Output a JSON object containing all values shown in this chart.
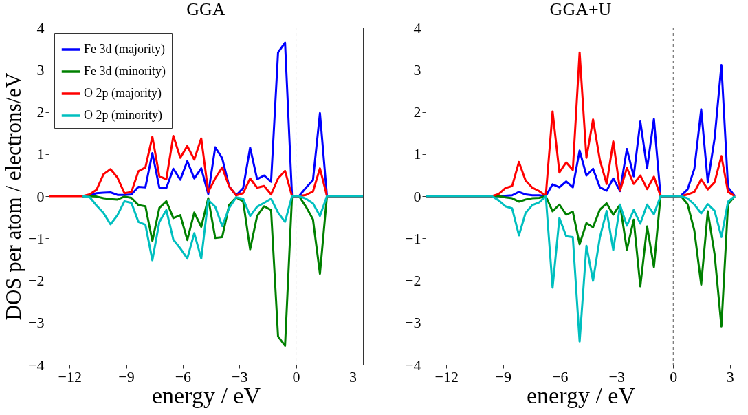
{
  "chart_data": [
    {
      "type": "line",
      "title": "GGA",
      "xlabel": "energy / eV",
      "ylabel": "DOS per atom / electrons/eV",
      "legend": "top left",
      "grid": false,
      "x": [
        -13.1,
        -11.31,
        -10.94,
        -10.57,
        -10.2,
        -9.83,
        -9.46,
        -9.09,
        -8.72,
        -8.35,
        -7.98,
        -7.61,
        -7.24,
        -6.87,
        -6.5,
        -6.13,
        -5.76,
        -5.39,
        -5.02,
        -4.65,
        -4.28,
        -3.91,
        -3.54,
        -3.17,
        -2.8,
        -2.43,
        -2.06,
        -1.69,
        -1.32,
        -0.95,
        -0.58,
        -0.21,
        0.16,
        0.53,
        0.9,
        1.27,
        1.64,
        3.55
      ],
      "xlim": [
        -13.1,
        3.55
      ],
      "xticks": [
        -12,
        -9,
        -6,
        -3,
        0,
        3
      ],
      "ylim": [
        -4,
        4
      ],
      "yticks": [
        -4,
        -3,
        -2,
        -1,
        0,
        1,
        2,
        3,
        4
      ],
      "series": [
        {
          "name": "Fe 3d (majority)",
          "color": "#0000ff",
          "values": [
            null,
            0,
            0.02,
            0.07,
            0.08,
            0.09,
            0.03,
            0.03,
            0.04,
            0.22,
            0.21,
            1.02,
            0.2,
            0.19,
            0.65,
            0.39,
            0.83,
            0.42,
            0.66,
            0.05,
            1.16,
            0.9,
            0.23,
            0.02,
            0.19,
            1.15,
            0.4,
            0.49,
            0.34,
            3.41,
            3.64,
            0,
            0,
            0.2,
            0.38,
            1.97,
            0,
            0
          ]
        },
        {
          "name": "Fe 3d (minority)",
          "color": "#008000",
          "values": [
            null,
            0,
            0,
            -0.01,
            -0.05,
            -0.07,
            -0.08,
            -0.01,
            -0.04,
            -0.21,
            -0.24,
            -1.06,
            -0.28,
            -0.12,
            -0.52,
            -0.45,
            -1.04,
            -0.39,
            -0.73,
            -0.05,
            -0.99,
            -0.97,
            -0.21,
            -0.03,
            -0.12,
            -1.26,
            -0.47,
            -0.24,
            -0.33,
            -3.33,
            -3.55,
            0,
            0,
            -0.25,
            -0.55,
            -1.84,
            0,
            0
          ]
        },
        {
          "name": "O 2p (majority)",
          "color": "#ff0000",
          "values": [
            0,
            0,
            0.04,
            0.15,
            0.52,
            0.64,
            0.44,
            0.07,
            0.1,
            0.59,
            0.68,
            1.41,
            0.47,
            0.4,
            1.43,
            0.91,
            1.19,
            0.87,
            1.37,
            0.1,
            0.42,
            0.68,
            0.23,
            0.02,
            0.07,
            0.42,
            0.2,
            0.24,
            0.04,
            0.42,
            0.6,
            0,
            0,
            0.03,
            0.11,
            0.66,
            0,
            0
          ]
        },
        {
          "name": "O 2p (minority)",
          "color": "#00bfbf",
          "values": [
            null,
            0,
            -0.02,
            -0.22,
            -0.4,
            -0.67,
            -0.45,
            -0.12,
            -0.16,
            -0.61,
            -0.68,
            -1.52,
            -0.61,
            -0.33,
            -1.03,
            -1.24,
            -1.48,
            -0.88,
            -1.48,
            -0.09,
            -0.25,
            -0.71,
            -0.28,
            -0.03,
            -0.06,
            -0.47,
            -0.25,
            -0.16,
            -0.06,
            -0.39,
            -0.61,
            0,
            0,
            -0.06,
            -0.17,
            -0.47,
            0,
            0
          ]
        }
      ],
      "ref_lines": [
        {
          "axis": "x",
          "value": 0,
          "color": "#555555",
          "line_style": "dashed"
        }
      ]
    },
    {
      "type": "line",
      "title": "GGA+U",
      "xlabel": "energy / eV",
      "grid": false,
      "x": [
        -13.1,
        -9.59,
        -9.23,
        -8.88,
        -8.52,
        -8.16,
        -7.81,
        -7.45,
        -7.09,
        -6.74,
        -6.38,
        -6.02,
        -5.66,
        -5.31,
        -4.95,
        -4.59,
        -4.24,
        -3.88,
        -3.52,
        -3.17,
        -2.81,
        -2.45,
        -2.09,
        -1.74,
        -1.38,
        -1.02,
        -0.67,
        -0.31,
        0.05,
        0.41,
        0.76,
        1.12,
        1.48,
        1.83,
        2.19,
        2.55,
        2.9,
        3.26
      ],
      "xlim": [
        -13.1,
        3.3
      ],
      "xticks": [
        -12,
        -9,
        -6,
        -3,
        0,
        3
      ],
      "ylim": [
        -4,
        4
      ],
      "yticks": [
        -4,
        -3,
        -2,
        -1,
        0,
        1,
        2,
        3,
        4
      ],
      "series": [
        {
          "color": "#0000ff",
          "values": [
            0,
            0,
            0,
            0.01,
            0.02,
            0.1,
            0.04,
            0.02,
            0.02,
            0,
            0.28,
            0.21,
            0.35,
            0.21,
            1.08,
            0.49,
            0.65,
            0.21,
            0.13,
            0.42,
            0.12,
            1.12,
            0.47,
            1.77,
            0.66,
            1.83,
            0,
            0,
            0,
            0.01,
            0.16,
            0.65,
            2.06,
            0.33,
            1.37,
            3.11,
            0.21,
            0
          ]
        },
        {
          "color": "#008000",
          "values": [
            0,
            0,
            0,
            -0.03,
            -0.05,
            -0.13,
            -0.08,
            -0.05,
            -0.04,
            0,
            -0.36,
            -0.2,
            -0.44,
            -0.37,
            -1.14,
            -0.64,
            -0.74,
            -0.32,
            -0.17,
            -0.44,
            -0.2,
            -1.27,
            -0.56,
            -2.14,
            -0.72,
            -1.68,
            0,
            0,
            0,
            0,
            -0.19,
            -0.82,
            -2.1,
            -0.36,
            -1.38,
            -3.09,
            -0.19,
            0
          ]
        },
        {
          "color": "#ff0000",
          "values": [
            0,
            0,
            0.05,
            0.19,
            0.24,
            0.81,
            0.37,
            0.2,
            0.12,
            0.01,
            2.01,
            0.56,
            0.8,
            0.62,
            3.41,
            0.91,
            1.82,
            0.86,
            0.29,
            1.3,
            0.13,
            0.67,
            0.29,
            0.49,
            0.17,
            0.46,
            0,
            0,
            0,
            0,
            0.04,
            0.1,
            0.4,
            0.16,
            0.33,
            0.95,
            0.1,
            0
          ]
        },
        {
          "color": "#00bfbf",
          "values": [
            0,
            0,
            -0.1,
            -0.24,
            -0.29,
            -0.93,
            -0.4,
            -0.21,
            -0.15,
            0,
            -2.17,
            -0.52,
            -0.95,
            -0.97,
            -3.45,
            -1.18,
            -2.01,
            -0.98,
            -0.35,
            -1.28,
            -0.21,
            -0.7,
            -0.33,
            -0.65,
            -0.2,
            -0.43,
            0,
            0,
            0,
            0,
            -0.05,
            -0.2,
            -0.41,
            -0.19,
            -0.35,
            -0.97,
            -0.13,
            0
          ]
        }
      ],
      "ref_lines": [
        {
          "axis": "x",
          "value": 0,
          "color": "#555555",
          "line_style": "dashed"
        }
      ]
    }
  ]
}
